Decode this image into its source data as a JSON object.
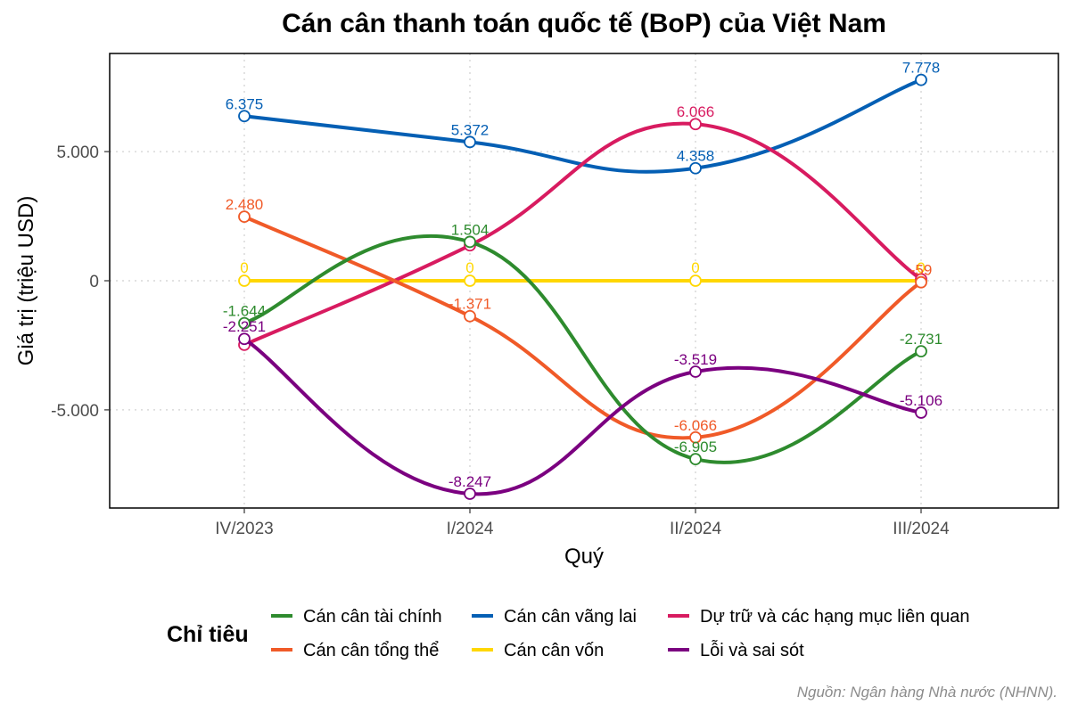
{
  "chart_data": {
    "type": "line",
    "title": "Cán cân thanh toán quốc tế (BoP) của Việt Nam",
    "xlabel": "Quý",
    "ylabel": "Giá trị (triệu USD)",
    "categories": [
      "IV/2023",
      "I/2024",
      "II/2024",
      "III/2024"
    ],
    "ylim": [
      -8800,
      8800
    ],
    "yticks": [
      -5000,
      0,
      5000
    ],
    "ytick_labels": [
      "-5.000",
      "0",
      "5.000"
    ],
    "grid": true,
    "legend_title": "Chỉ tiêu",
    "legend_position": "bottom",
    "caption": "Nguồn: Ngân hàng Nhà nước (NHNN).",
    "series": [
      {
        "name": "Cán cân tài chính",
        "color": "#2e8b2e",
        "values": [
          -1644,
          1504,
          -6905,
          -2731
        ],
        "labels": [
          "-1.644",
          "1.504",
          "-6.905",
          "-2.731"
        ]
      },
      {
        "name": "Cán cân tổng thể",
        "color": "#f05a28",
        "values": [
          2480,
          -1371,
          -6066,
          -59
        ],
        "labels": [
          "2.480",
          "-1.371",
          "-6.066",
          "-59"
        ]
      },
      {
        "name": "Cán cân vãng lai",
        "color": "#045fb4",
        "values": [
          6375,
          5372,
          4358,
          7778
        ],
        "labels": [
          "6.375",
          "5.372",
          "4.358",
          "7.778"
        ]
      },
      {
        "name": "Cán cân vốn",
        "color": "#ffd700",
        "values": [
          0,
          0,
          0,
          0
        ],
        "labels": [
          "0",
          "0",
          "0",
          "0"
        ]
      },
      {
        "name": "Dự trữ và các hạng mục liên quan",
        "color": "#d81b60",
        "values": [
          -2480,
          1371,
          6066,
          59
        ],
        "labels": [
          "",
          "",
          "6.066",
          ""
        ]
      },
      {
        "name": "Lỗi và sai sót",
        "color": "#7b0080",
        "values": [
          -2251,
          -8247,
          -3519,
          -5106
        ],
        "labels": [
          "-2.251",
          "-8.247",
          "-3.519",
          "-5.106"
        ]
      }
    ]
  }
}
